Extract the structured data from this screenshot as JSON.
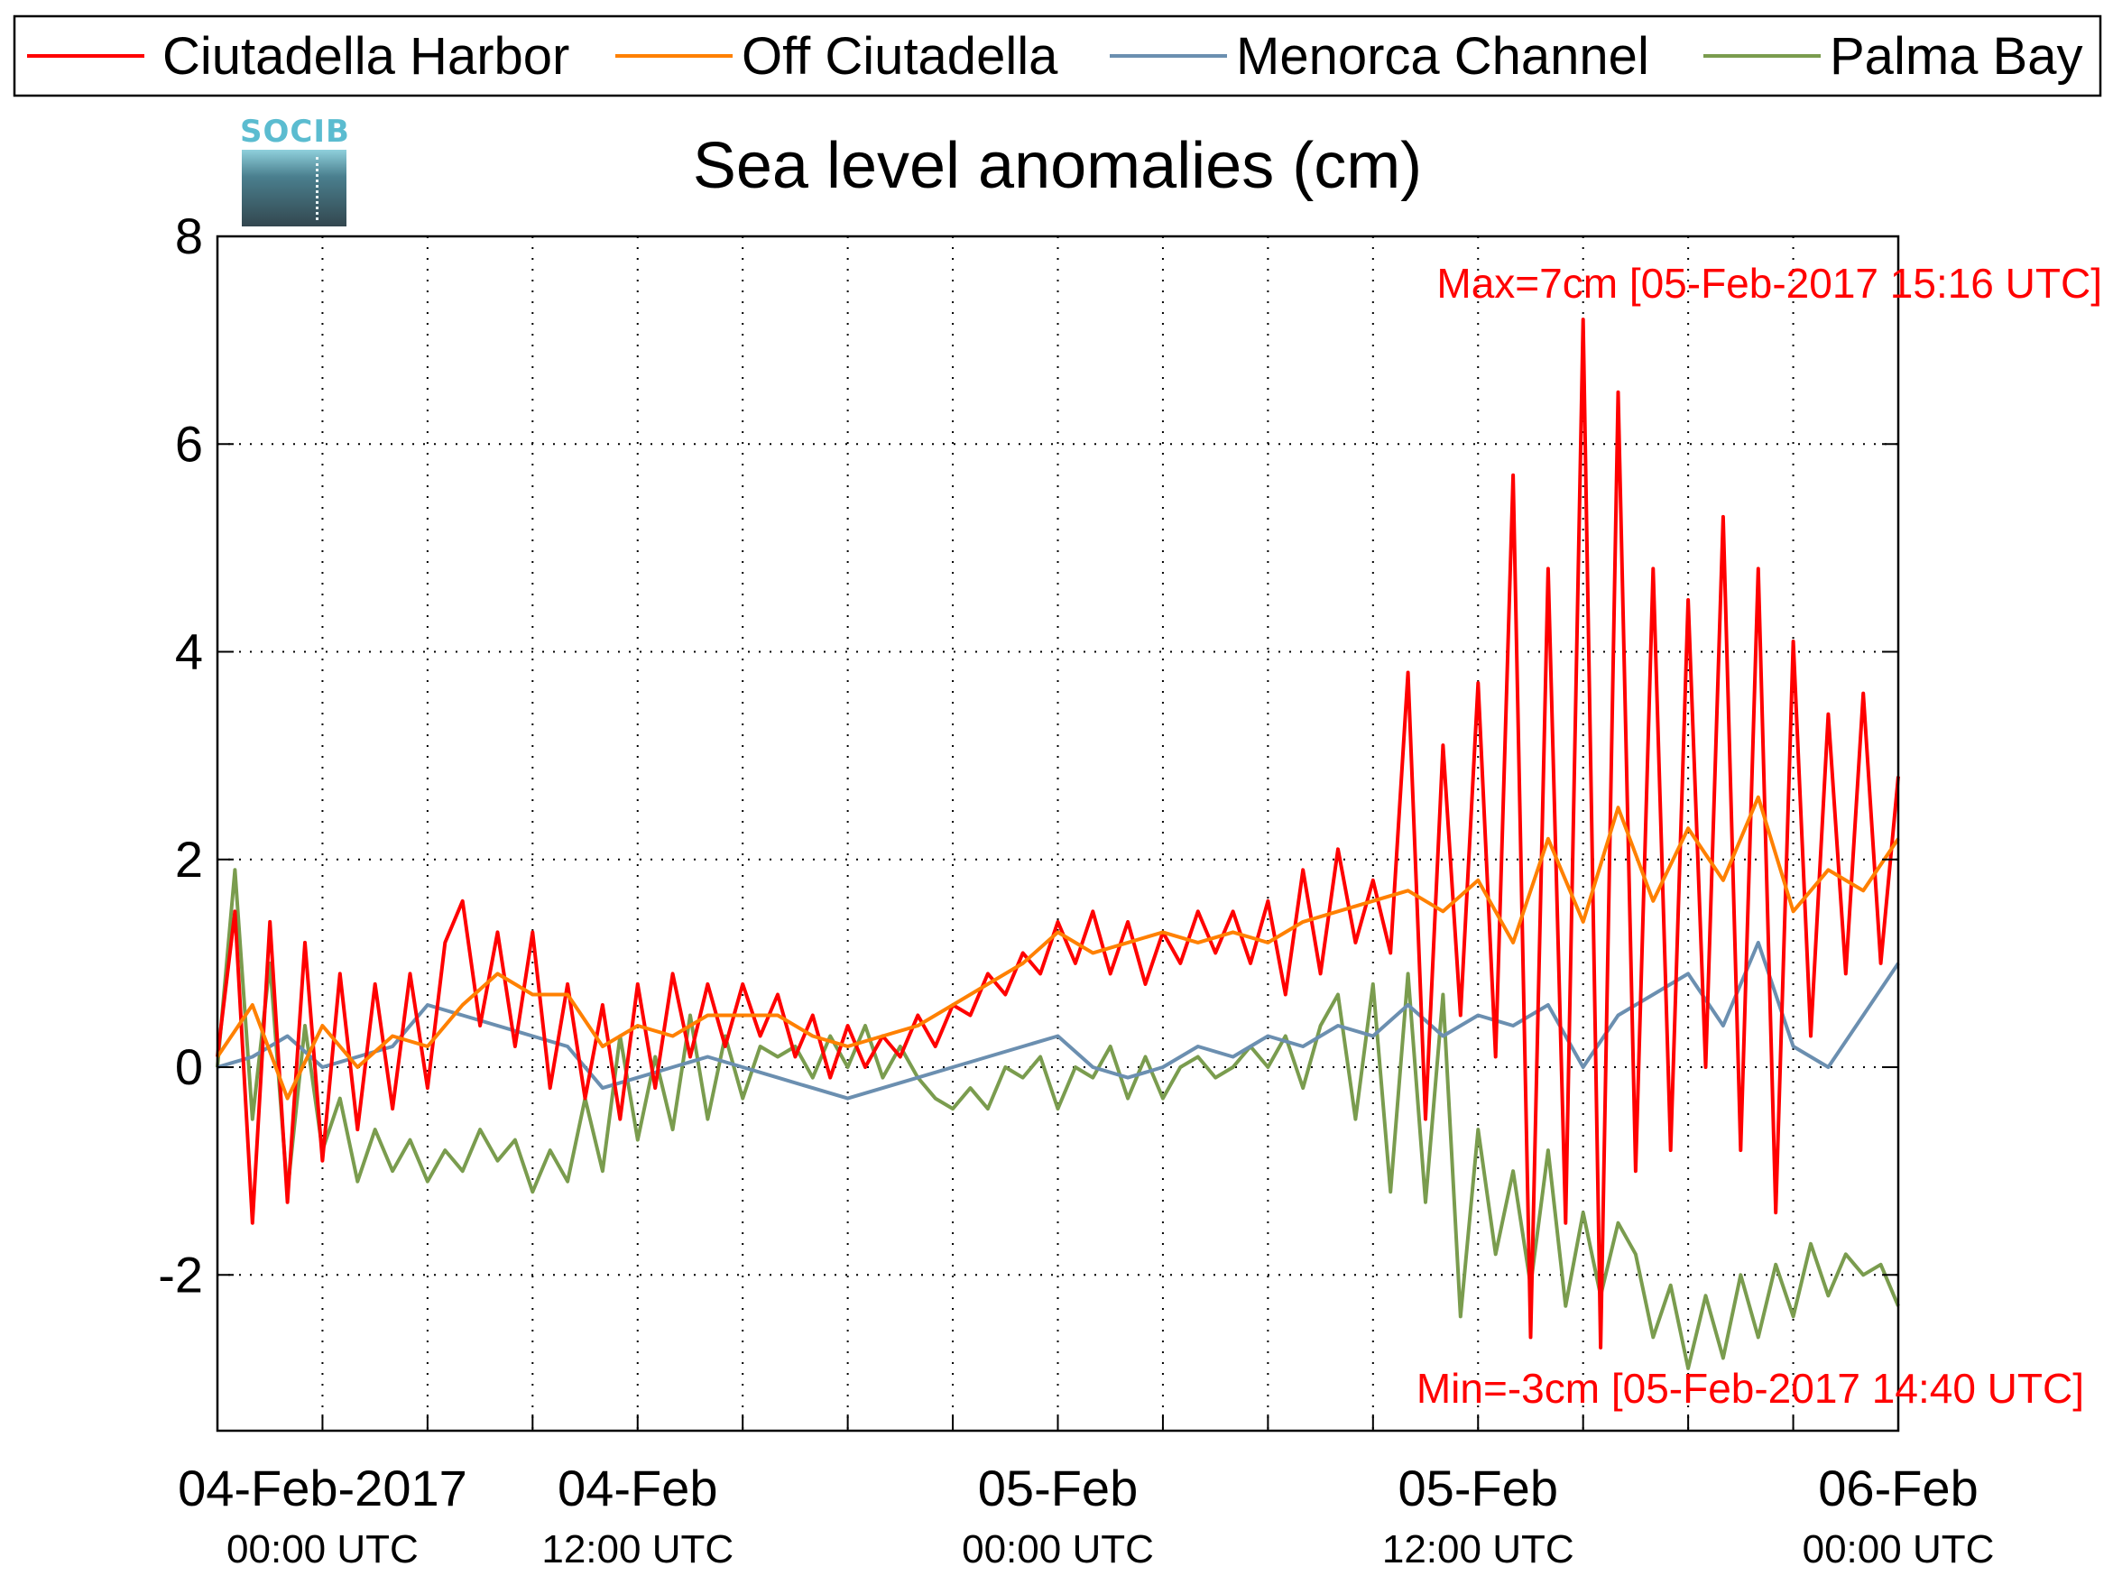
{
  "logo_text": "SOCIB",
  "chart_data": {
    "type": "line",
    "title": "Sea level anomalies (cm)",
    "ylim": [
      -3.5,
      8
    ],
    "yticks": [
      8,
      6,
      4,
      2,
      0,
      -2
    ],
    "xlim_hours": [
      0,
      48
    ],
    "xticks": [
      {
        "hour": 3,
        "line1": "04-Feb-2017",
        "line2": "00:00 UTC"
      },
      {
        "hour": 12,
        "line1": "04-Feb",
        "line2": "12:00 UTC"
      },
      {
        "hour": 24,
        "line1": "05-Feb",
        "line2": "00:00 UTC"
      },
      {
        "hour": 36,
        "line1": "05-Feb",
        "line2": "12:00 UTC"
      },
      {
        "hour": 48,
        "line1": "06-Feb",
        "line2": "00:00 UTC"
      }
    ],
    "grid": true,
    "legend_position": "top",
    "annotations": {
      "max": "Max=7cm [05-Feb-2017 15:16 UTC]",
      "min": "Min=-3cm [05-Feb-2017 14:40 UTC]"
    },
    "series": [
      {
        "name": "Ciutadella Harbor",
        "color": "#ff0000",
        "x": [
          0,
          0.5,
          1,
          1.5,
          2,
          2.5,
          3,
          3.5,
          4,
          4.5,
          5,
          5.5,
          6,
          6.5,
          7,
          7.5,
          8,
          8.5,
          9,
          9.5,
          10,
          10.5,
          11,
          11.5,
          12,
          12.5,
          13,
          13.5,
          14,
          14.5,
          15,
          15.5,
          16,
          16.5,
          17,
          17.5,
          18,
          18.5,
          19,
          19.5,
          20,
          20.5,
          21,
          21.5,
          22,
          22.5,
          23,
          23.5,
          24,
          24.5,
          25,
          25.5,
          26,
          26.5,
          27,
          27.5,
          28,
          28.5,
          29,
          29.5,
          30,
          30.5,
          31,
          31.5,
          32,
          32.5,
          33,
          33.5,
          34,
          34.5,
          35,
          35.5,
          36,
          36.5,
          37,
          37.5,
          38,
          38.5,
          39,
          39.5,
          40,
          40.5,
          41,
          41.5,
          42,
          42.5,
          43,
          43.5,
          44,
          44.5,
          45,
          45.5,
          46,
          46.5,
          47,
          47.5,
          48
        ],
        "values": [
          0.1,
          1.5,
          -1.5,
          1.4,
          -1.3,
          1.2,
          -0.9,
          0.9,
          -0.6,
          0.8,
          -0.4,
          0.9,
          -0.2,
          1.2,
          1.6,
          0.4,
          1.3,
          0.2,
          1.3,
          -0.2,
          0.8,
          -0.3,
          0.6,
          -0.5,
          0.8,
          -0.2,
          0.9,
          0.1,
          0.8,
          0.2,
          0.8,
          0.3,
          0.7,
          0.1,
          0.5,
          -0.1,
          0.4,
          0.0,
          0.3,
          0.1,
          0.5,
          0.2,
          0.6,
          0.5,
          0.9,
          0.7,
          1.1,
          0.9,
          1.4,
          1.0,
          1.5,
          0.9,
          1.4,
          0.8,
          1.3,
          1.0,
          1.5,
          1.1,
          1.5,
          1.0,
          1.6,
          0.7,
          1.9,
          0.9,
          2.1,
          1.2,
          1.8,
          1.1,
          3.8,
          -0.5,
          3.1,
          0.5,
          3.7,
          0.1,
          5.7,
          -2.6,
          4.8,
          -1.5,
          7.2,
          -2.7,
          6.5,
          -1.0,
          4.8,
          -0.8,
          4.5,
          0.0,
          5.3,
          -0.8,
          4.8,
          -1.4,
          4.1,
          0.3,
          3.4,
          0.9,
          3.6,
          1.0,
          2.8
        ]
      },
      {
        "name": "Off Ciutadella",
        "color": "#ff8000",
        "x": [
          0,
          1,
          2,
          3,
          4,
          5,
          6,
          7,
          8,
          9,
          10,
          11,
          12,
          13,
          14,
          15,
          16,
          17,
          18,
          19,
          20,
          21,
          22,
          23,
          24,
          25,
          26,
          27,
          28,
          29,
          30,
          31,
          32,
          33,
          34,
          35,
          36,
          37,
          38,
          39,
          40,
          41,
          42,
          43,
          44,
          45,
          46,
          47,
          48
        ],
        "values": [
          0.1,
          0.6,
          -0.3,
          0.4,
          0.0,
          0.3,
          0.2,
          0.6,
          0.9,
          0.7,
          0.7,
          0.2,
          0.4,
          0.3,
          0.5,
          0.5,
          0.5,
          0.3,
          0.2,
          0.3,
          0.4,
          0.6,
          0.8,
          1.0,
          1.3,
          1.1,
          1.2,
          1.3,
          1.2,
          1.3,
          1.2,
          1.4,
          1.5,
          1.6,
          1.7,
          1.5,
          1.8,
          1.2,
          2.2,
          1.4,
          2.5,
          1.6,
          2.3,
          1.8,
          2.6,
          1.5,
          1.9,
          1.7,
          2.2
        ]
      },
      {
        "name": "Menorca Channel",
        "color": "#6b8fb0",
        "x": [
          0,
          1,
          2,
          3,
          4,
          5,
          6,
          7,
          8,
          9,
          10,
          11,
          12,
          13,
          14,
          15,
          16,
          17,
          18,
          19,
          20,
          21,
          22,
          23,
          24,
          25,
          26,
          27,
          28,
          29,
          30,
          31,
          32,
          33,
          34,
          35,
          36,
          37,
          38,
          39,
          40,
          41,
          42,
          43,
          44,
          45,
          46,
          47,
          48
        ],
        "values": [
          0.0,
          0.1,
          0.3,
          0.0,
          0.1,
          0.2,
          0.6,
          0.5,
          0.4,
          0.3,
          0.2,
          -0.2,
          -0.1,
          0.0,
          0.1,
          0.0,
          -0.1,
          -0.2,
          -0.3,
          -0.2,
          -0.1,
          0.0,
          0.1,
          0.2,
          0.3,
          0.0,
          -0.1,
          0.0,
          0.2,
          0.1,
          0.3,
          0.2,
          0.4,
          0.3,
          0.6,
          0.3,
          0.5,
          0.4,
          0.6,
          0.0,
          0.5,
          0.7,
          0.9,
          0.4,
          1.2,
          0.2,
          0.0,
          0.5,
          1.0
        ]
      },
      {
        "name": "Palma Bay",
        "color": "#7a9c4e",
        "x": [
          0,
          0.5,
          1,
          1.5,
          2,
          2.5,
          3,
          3.5,
          4,
          4.5,
          5,
          5.5,
          6,
          6.5,
          7,
          7.5,
          8,
          8.5,
          9,
          9.5,
          10,
          10.5,
          11,
          11.5,
          12,
          12.5,
          13,
          13.5,
          14,
          14.5,
          15,
          15.5,
          16,
          16.5,
          17,
          17.5,
          18,
          18.5,
          19,
          19.5,
          20,
          20.5,
          21,
          21.5,
          22,
          22.5,
          23,
          23.5,
          24,
          24.5,
          25,
          25.5,
          26,
          26.5,
          27,
          27.5,
          28,
          28.5,
          29,
          29.5,
          30,
          30.5,
          31,
          31.5,
          32,
          32.5,
          33,
          33.5,
          34,
          34.5,
          35,
          35.5,
          36,
          36.5,
          37,
          37.5,
          38,
          38.5,
          39,
          39.5,
          40,
          40.5,
          41,
          41.5,
          42,
          42.5,
          43,
          43.5,
          44,
          44.5,
          45,
          45.5,
          46,
          46.5,
          47,
          47.5,
          48
        ],
        "values": [
          0.0,
          1.9,
          -0.5,
          1.0,
          -1.2,
          0.4,
          -0.8,
          -0.3,
          -1.1,
          -0.6,
          -1.0,
          -0.7,
          -1.1,
          -0.8,
          -1.0,
          -0.6,
          -0.9,
          -0.7,
          -1.2,
          -0.8,
          -1.1,
          -0.3,
          -1.0,
          0.3,
          -0.7,
          0.1,
          -0.6,
          0.5,
          -0.5,
          0.3,
          -0.3,
          0.2,
          0.1,
          0.2,
          -0.1,
          0.3,
          0.0,
          0.4,
          -0.1,
          0.2,
          -0.1,
          -0.3,
          -0.4,
          -0.2,
          -0.4,
          0.0,
          -0.1,
          0.1,
          -0.4,
          0.0,
          -0.1,
          0.2,
          -0.3,
          0.1,
          -0.3,
          0.0,
          0.1,
          -0.1,
          0.0,
          0.2,
          0.0,
          0.3,
          -0.2,
          0.4,
          0.7,
          -0.5,
          0.8,
          -1.2,
          0.9,
          -1.3,
          0.7,
          -2.4,
          -0.6,
          -1.8,
          -1.0,
          -2.1,
          -0.8,
          -2.3,
          -1.4,
          -2.2,
          -1.5,
          -1.8,
          -2.6,
          -2.1,
          -2.9,
          -2.2,
          -2.8,
          -2.0,
          -2.6,
          -1.9,
          -2.4,
          -1.7,
          -2.2,
          -1.8,
          -2.0,
          -1.9,
          -2.3
        ]
      }
    ]
  }
}
